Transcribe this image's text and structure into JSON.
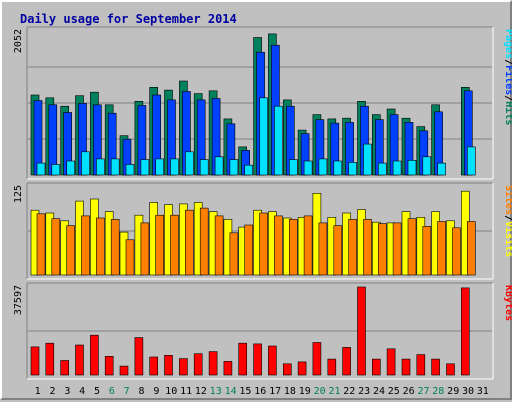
{
  "colors": {
    "background": "#c0c0c0",
    "plot_bg": "#c0c0c0",
    "title": "#0000a0",
    "hits": "#00805c",
    "files": "#0040ff",
    "pages": "#00e0ff",
    "visits": "#ffff00",
    "sites": "#ff8000",
    "kbytes": "#ff0000",
    "weekday_label": "#000000",
    "weekend_label": "#00805c",
    "gridline": "#808080"
  },
  "chart_data": {
    "type": "bar",
    "title": "Daily usage for September 2014",
    "categories": [
      "1",
      "2",
      "3",
      "4",
      "5",
      "6",
      "7",
      "8",
      "9",
      "10",
      "11",
      "12",
      "13",
      "14",
      "15",
      "16",
      "17",
      "18",
      "19",
      "20",
      "21",
      "22",
      "23",
      "24",
      "25",
      "26",
      "27",
      "28",
      "29",
      "30",
      "31"
    ],
    "weekend_days": [
      "6",
      "7",
      "13",
      "14",
      "20",
      "21",
      "27",
      "28"
    ],
    "panels": [
      {
        "name": "hits-files-pages",
        "ymax_label": "2052",
        "ylim": [
          0,
          2052
        ],
        "side_label": [
          {
            "text": "Hits",
            "color": "#00805c"
          },
          {
            "text": "Files",
            "color": "#0040ff"
          },
          {
            "text": "Pages",
            "color": "#00e0ff"
          }
        ],
        "separators": [
          "/",
          "/"
        ],
        "series": [
          {
            "name": "Hits",
            "color": "#00805c",
            "values": [
              1140,
              1100,
              980,
              1130,
              1180,
              1000,
              560,
              1050,
              1250,
              1210,
              1340,
              1160,
              1200,
              800,
              400,
              1960,
              2010,
              1070,
              640,
              860,
              800,
              810,
              1050,
              860,
              940,
              810,
              690,
              1000,
              0,
              1250,
              0
            ]
          },
          {
            "name": "Files",
            "color": "#0040ff",
            "values": [
              1060,
              1000,
              890,
              1020,
              1000,
              880,
              510,
              990,
              1140,
              1070,
              1190,
              1070,
              1090,
              730,
              350,
              1750,
              1850,
              980,
              590,
              790,
              740,
              750,
              980,
              790,
              860,
              750,
              630,
              900,
              0,
              1200,
              0
            ]
          },
          {
            "name": "Pages",
            "color": "#00e0ff",
            "values": [
              170,
              150,
              200,
              330,
              230,
              230,
              150,
              220,
              230,
              230,
              330,
              220,
              260,
              220,
              140,
              1100,
              980,
              220,
              200,
              230,
              200,
              180,
              440,
              170,
              200,
              210,
              260,
              170,
              0,
              400,
              0
            ]
          }
        ]
      },
      {
        "name": "visits-sites",
        "ymax_label": "125",
        "ylim": [
          0,
          125
        ],
        "side_label": [
          {
            "text": "Visits",
            "color": "#ffff00"
          },
          {
            "text": "Sites",
            "color": "#ff8000"
          }
        ],
        "separators": [
          "/"
        ],
        "series": [
          {
            "name": "Visits",
            "color": "#ffff00",
            "values": [
              92,
              88,
              77,
              105,
              108,
              90,
              61,
              85,
              103,
              100,
              101,
              103,
              90,
              79,
              68,
              92,
              90,
              81,
              82,
              116,
              82,
              88,
              93,
              75,
              74,
              90,
              82,
              90,
              77,
              119,
              0
            ]
          },
          {
            "name": "Sites",
            "color": "#ff8000",
            "values": [
              87,
              80,
              70,
              84,
              81,
              79,
              50,
              74,
              85,
              85,
              92,
              95,
              84,
              60,
              71,
              88,
              84,
              79,
              84,
              74,
              70,
              79,
              79,
              73,
              74,
              80,
              69,
              76,
              67,
              76,
              0
            ]
          }
        ]
      },
      {
        "name": "kbytes",
        "ymax_label": "37597",
        "ylim": [
          0,
          37597
        ],
        "side_label": [
          {
            "text": "KBytes",
            "color": "#ff0000"
          }
        ],
        "separators": [],
        "series": [
          {
            "name": "KBytes",
            "color": "#ff0000",
            "values": [
              12000,
              13600,
              6200,
              12800,
              17000,
              8000,
              3800,
              16000,
              7700,
              8400,
              7000,
              9100,
              10000,
              5800,
              13600,
              13300,
              12400,
              4800,
              5600,
              13900,
              6800,
              11800,
              37597,
              6800,
              11200,
              6800,
              8700,
              6800,
              4800,
              37200,
              0
            ]
          }
        ]
      }
    ]
  }
}
